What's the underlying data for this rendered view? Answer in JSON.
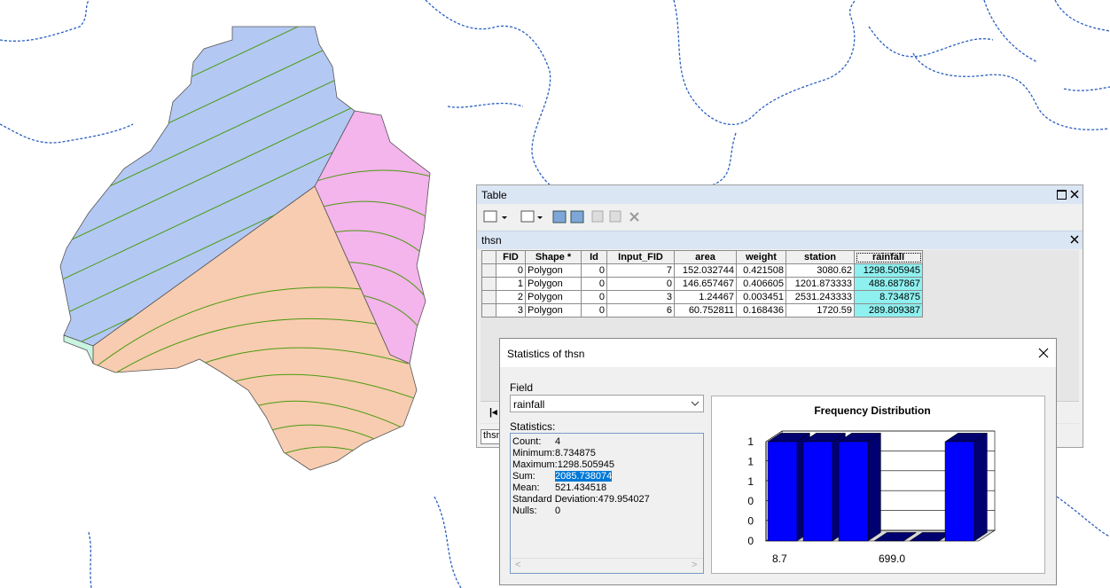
{
  "table_window": {
    "title": "Table",
    "tab": "thsn",
    "bottom_tab": "thsn",
    "columns": [
      "FID",
      "Shape *",
      "Id",
      "Input_FID",
      "area",
      "weight",
      "station",
      "rainfall"
    ],
    "rows": [
      [
        "0",
        "Polygon",
        "0",
        "7",
        "152.032744",
        "0.421508",
        "3080.62",
        "1298.505945"
      ],
      [
        "1",
        "Polygon",
        "0",
        "0",
        "146.657467",
        "0.406605",
        "1201.873333",
        "488.687867"
      ],
      [
        "2",
        "Polygon",
        "0",
        "3",
        "1.24467",
        "0.003451",
        "2531.243333",
        "8.734875"
      ],
      [
        "3",
        "Polygon",
        "0",
        "6",
        "60.752811",
        "0.168436",
        "1720.59",
        "289.809387"
      ]
    ]
  },
  "statistics_dialog": {
    "title": "Statistics of thsn",
    "field_label": "Field",
    "field_value": "rainfall",
    "statistics_label": "Statistics:",
    "statistics": [
      {
        "label": "Count:",
        "value": "4"
      },
      {
        "label": "Minimum:",
        "value": "8.734875"
      },
      {
        "label": "Maximum:",
        "value": "1298.505945"
      },
      {
        "label": "Sum:",
        "value": "2085.738074"
      },
      {
        "label": "Mean:",
        "value": "521.434518"
      },
      {
        "label": "Standard Deviation:",
        "value": "479.954027"
      },
      {
        "label": "Nulls:",
        "value": "0"
      }
    ],
    "chart": {
      "type": "bar",
      "title": "Frequency Distribution",
      "categories": [
        "8.7",
        null,
        null,
        "699.0",
        null,
        null
      ],
      "values": [
        1,
        1,
        1,
        0,
        0,
        1
      ],
      "color": "#0000ff",
      "ylim": [
        0,
        1
      ],
      "yticks": [
        {
          "value": 0,
          "label": "0"
        },
        {
          "value": 0.2,
          "label": "0"
        },
        {
          "value": 0.4,
          "label": "0"
        },
        {
          "value": 0.6,
          "label": "1"
        },
        {
          "value": 0.8,
          "label": "1"
        },
        {
          "value": 1,
          "label": "1"
        }
      ]
    }
  }
}
